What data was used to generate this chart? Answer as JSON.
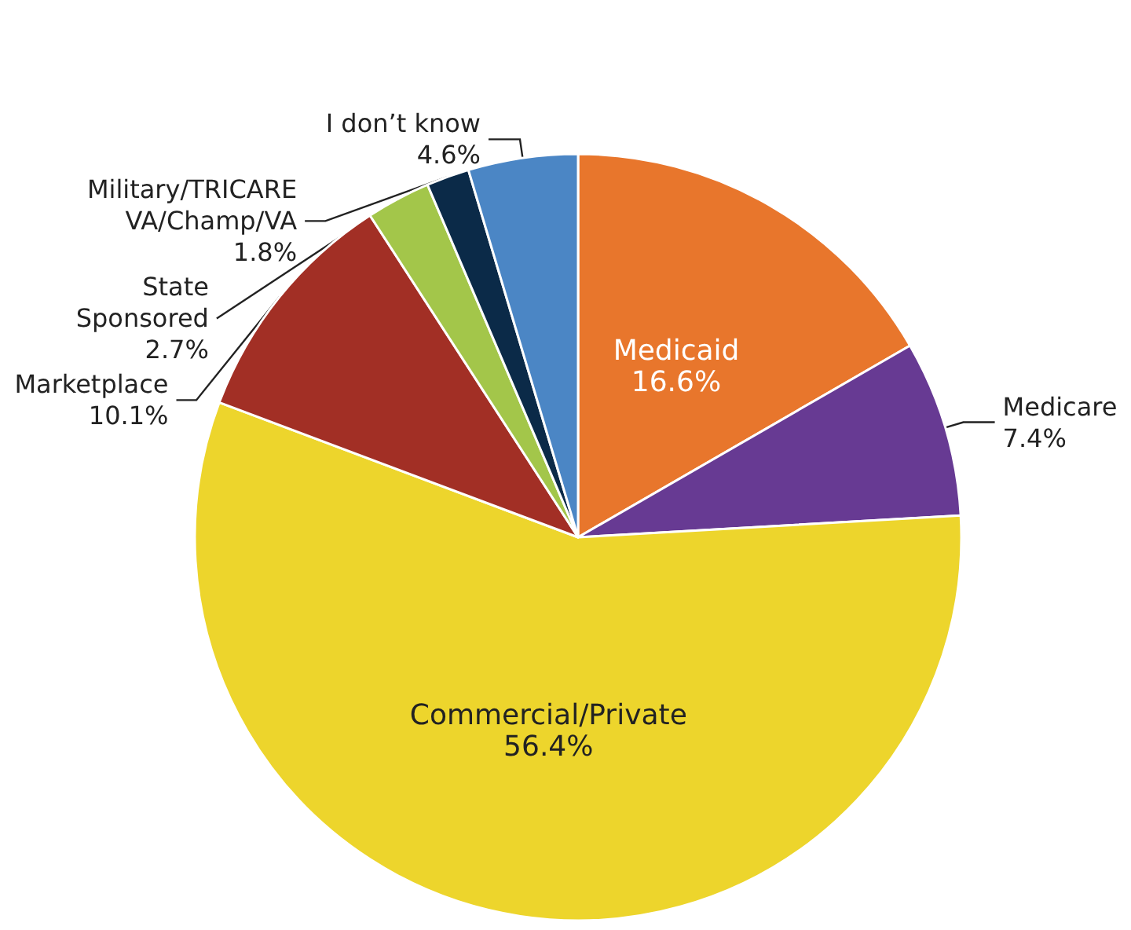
{
  "chart_data": {
    "type": "pie",
    "categories": [
      "Medicaid",
      "Medicare",
      "Commercial/Private",
      "Marketplace",
      "State\nSponsored",
      "Military/TRICARE\nVA/Champ/VA",
      "I don’t know"
    ],
    "values": [
      16.6,
      7.4,
      56.4,
      10.1,
      2.7,
      1.8,
      4.6
    ],
    "value_labels": [
      "16.6%",
      "7.4%",
      "56.4%",
      "10.1%",
      "2.7%",
      "1.8%",
      "4.6%"
    ],
    "colors": [
      "#e8762c",
      "#673a93",
      "#edd52c",
      "#a22f25",
      "#a3c64a",
      "#0b2a48",
      "#4b86c5"
    ]
  }
}
